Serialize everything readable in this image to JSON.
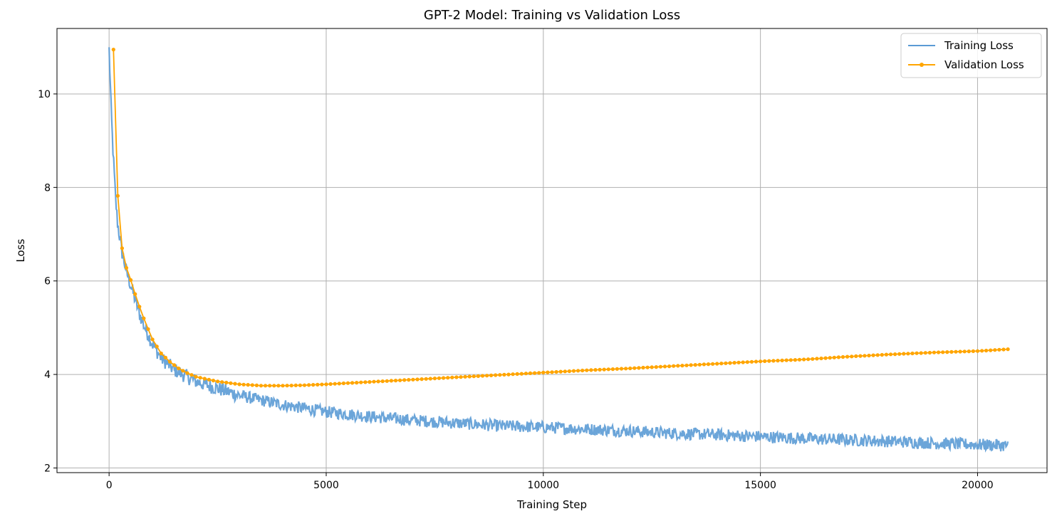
{
  "chart_data": {
    "type": "line",
    "title": "GPT-2 Model: Training vs Validation Loss",
    "xlabel": "Training Step",
    "ylabel": "Loss",
    "xlim": [
      -1200,
      21600
    ],
    "ylim": [
      1.9,
      11.4
    ],
    "xticks": [
      0,
      5000,
      10000,
      15000,
      20000
    ],
    "yticks": [
      2,
      4,
      6,
      8,
      10
    ],
    "grid": true,
    "legend_position": "top-right",
    "series": [
      {
        "name": "Training Loss",
        "color": "#5b9bd5",
        "style": "line",
        "noise": 0.13,
        "points": [
          [
            0,
            10.95
          ],
          [
            50,
            9.6
          ],
          [
            100,
            8.6
          ],
          [
            150,
            7.75
          ],
          [
            200,
            7.2
          ],
          [
            300,
            6.6
          ],
          [
            400,
            6.2
          ],
          [
            500,
            5.9
          ],
          [
            600,
            5.6
          ],
          [
            700,
            5.3
          ],
          [
            800,
            5.05
          ],
          [
            900,
            4.85
          ],
          [
            1000,
            4.65
          ],
          [
            1200,
            4.35
          ],
          [
            1500,
            4.1
          ],
          [
            1800,
            3.95
          ],
          [
            2000,
            3.85
          ],
          [
            2500,
            3.7
          ],
          [
            3000,
            3.55
          ],
          [
            3500,
            3.45
          ],
          [
            4000,
            3.35
          ],
          [
            5000,
            3.2
          ],
          [
            6000,
            3.1
          ],
          [
            7000,
            3.02
          ],
          [
            8000,
            2.96
          ],
          [
            9000,
            2.9
          ],
          [
            10000,
            2.87
          ],
          [
            11000,
            2.83
          ],
          [
            12000,
            2.79
          ],
          [
            13000,
            2.74
          ],
          [
            14000,
            2.71
          ],
          [
            15000,
            2.67
          ],
          [
            16000,
            2.63
          ],
          [
            17000,
            2.6
          ],
          [
            18000,
            2.57
          ],
          [
            19000,
            2.53
          ],
          [
            20000,
            2.5
          ],
          [
            20700,
            2.48
          ]
        ]
      },
      {
        "name": "Validation Loss",
        "color": "#ffa500",
        "style": "line-marker",
        "x_start": 100,
        "x_step": 100,
        "x_end": 20700,
        "points": [
          [
            100,
            10.95
          ],
          [
            200,
            7.82
          ],
          [
            300,
            6.7
          ],
          [
            400,
            6.28
          ],
          [
            500,
            6.02
          ],
          [
            600,
            5.72
          ],
          [
            700,
            5.45
          ],
          [
            800,
            5.2
          ],
          [
            900,
            4.97
          ],
          [
            1000,
            4.75
          ],
          [
            1200,
            4.45
          ],
          [
            1400,
            4.27
          ],
          [
            1600,
            4.13
          ],
          [
            1800,
            4.03
          ],
          [
            2000,
            3.95
          ],
          [
            2500,
            3.85
          ],
          [
            3000,
            3.79
          ],
          [
            3500,
            3.76
          ],
          [
            4000,
            3.76
          ],
          [
            4500,
            3.77
          ],
          [
            5000,
            3.79
          ],
          [
            6000,
            3.84
          ],
          [
            7000,
            3.89
          ],
          [
            8000,
            3.94
          ],
          [
            9000,
            3.99
          ],
          [
            10000,
            4.04
          ],
          [
            11000,
            4.09
          ],
          [
            12000,
            4.13
          ],
          [
            13000,
            4.18
          ],
          [
            14000,
            4.23
          ],
          [
            15000,
            4.28
          ],
          [
            16000,
            4.32
          ],
          [
            17000,
            4.38
          ],
          [
            18000,
            4.43
          ],
          [
            19000,
            4.47
          ],
          [
            20000,
            4.5
          ],
          [
            20700,
            4.54
          ]
        ]
      }
    ]
  }
}
